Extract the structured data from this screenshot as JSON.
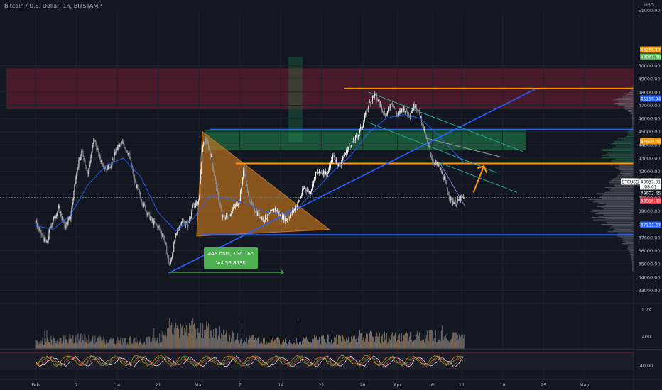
{
  "header": {
    "title": "Bitcoin / U.S. Dollar, 1h, BITSTAMP",
    "currency": "USD"
  },
  "chart_data": {
    "type": "candlestick",
    "symbol": "BTCUSD",
    "price_axis": {
      "ticks": [
        50000,
        49000,
        48000,
        47000,
        46000,
        45000,
        44000,
        43000,
        42000,
        41000,
        40000,
        39000,
        38000,
        37000,
        36000,
        35000,
        34000,
        33000
      ],
      "tick_labels": [
        "50000.00",
        "49000.00",
        "48000.00",
        "47000.00",
        "46000.00",
        "45000.00",
        "44000.00",
        "43000.00",
        "42000.00",
        "41000.00",
        "40000.00",
        "39000.00",
        "38000.00",
        "37000.00",
        "36000.00",
        "35000.00",
        "34000.00",
        "33000.00"
      ],
      "top_label": "51000.00",
      "range": [
        32500,
        51500
      ]
    },
    "time_axis": {
      "labels": [
        "Feb",
        "7",
        "14",
        "21",
        "Mar",
        "7",
        "14",
        "21",
        "28",
        "Apr",
        "6",
        "11",
        "18",
        "25",
        "May"
      ],
      "label_days": [
        0,
        7,
        14,
        21,
        28,
        35,
        42,
        49,
        56,
        62,
        68,
        73,
        80,
        87,
        94
      ],
      "data_end_day": 73.5
    },
    "price_series_anchors": [
      [
        0,
        38200
      ],
      [
        1,
        37200
      ],
      [
        2,
        36500
      ],
      [
        2.5,
        37800
      ],
      [
        3,
        38300
      ],
      [
        4,
        39200
      ],
      [
        5,
        37800
      ],
      [
        6,
        38500
      ],
      [
        7,
        42000
      ],
      [
        8,
        43500
      ],
      [
        9,
        41800
      ],
      [
        10,
        44500
      ],
      [
        11,
        43000
      ],
      [
        12,
        42200
      ],
      [
        13,
        42500
      ],
      [
        14,
        43800
      ],
      [
        15,
        44100
      ],
      [
        16,
        43300
      ],
      [
        17,
        41200
      ],
      [
        18,
        40000
      ],
      [
        19,
        39000
      ],
      [
        20,
        38200
      ],
      [
        21,
        37800
      ],
      [
        22,
        37000
      ],
      [
        23,
        34800
      ],
      [
        24,
        37100
      ],
      [
        25,
        38300
      ],
      [
        26,
        37900
      ],
      [
        27,
        39300
      ],
      [
        28,
        39800
      ],
      [
        28.6,
        43800
      ],
      [
        29.2,
        44500
      ],
      [
        30,
        43300
      ],
      [
        31,
        40800
      ],
      [
        32,
        38500
      ],
      [
        33,
        38600
      ],
      [
        34,
        39200
      ],
      [
        35,
        39900
      ],
      [
        35.7,
        42300
      ],
      [
        36.4,
        40200
      ],
      [
        37,
        39500
      ],
      [
        38,
        38800
      ],
      [
        39,
        38400
      ],
      [
        40,
        38700
      ],
      [
        41,
        39200
      ],
      [
        42,
        38600
      ],
      [
        43,
        38400
      ],
      [
        44,
        38900
      ],
      [
        45,
        39600
      ],
      [
        46,
        40800
      ],
      [
        47,
        40400
      ],
      [
        48,
        41800
      ],
      [
        49,
        42000
      ],
      [
        50,
        41800
      ],
      [
        51,
        43200
      ],
      [
        52,
        42400
      ],
      [
        53,
        43300
      ],
      [
        54,
        44100
      ],
      [
        55,
        44600
      ],
      [
        56,
        45500
      ],
      [
        57,
        47000
      ],
      [
        58,
        47800
      ],
      [
        59,
        47100
      ],
      [
        60,
        46200
      ],
      [
        61,
        47300
      ],
      [
        62,
        46200
      ],
      [
        63,
        46800
      ],
      [
        64,
        46300
      ],
      [
        65,
        47100
      ],
      [
        66,
        46000
      ],
      [
        67,
        44300
      ],
      [
        68,
        42800
      ],
      [
        69,
        42400
      ],
      [
        70,
        41400
      ],
      [
        71,
        39900
      ],
      [
        72,
        39600
      ],
      [
        73,
        40000
      ],
      [
        73.5,
        40031
      ]
    ],
    "moving_average_anchors": [
      [
        0,
        37900
      ],
      [
        3,
        37600
      ],
      [
        6,
        38700
      ],
      [
        9,
        41000
      ],
      [
        12,
        42400
      ],
      [
        15,
        43000
      ],
      [
        18,
        41600
      ],
      [
        21,
        38900
      ],
      [
        24,
        37500
      ],
      [
        27,
        38400
      ],
      [
        30,
        40200
      ],
      [
        33,
        39900
      ],
      [
        36,
        39600
      ],
      [
        39,
        39000
      ],
      [
        42,
        38800
      ],
      [
        45,
        39300
      ],
      [
        48,
        40600
      ],
      [
        51,
        42000
      ],
      [
        54,
        43200
      ],
      [
        57,
        44900
      ],
      [
        60,
        46000
      ],
      [
        63,
        46300
      ],
      [
        66,
        46000
      ],
      [
        69,
        44700
      ],
      [
        73.5,
        42600
      ]
    ],
    "volume_axis": {
      "labels": [
        "1.2K",
        "400"
      ]
    },
    "volume_anchors": [
      [
        0,
        110
      ],
      [
        7,
        160
      ],
      [
        14,
        120
      ],
      [
        21,
        140
      ],
      [
        23,
        340
      ],
      [
        28,
        300
      ],
      [
        35,
        150
      ],
      [
        42,
        130
      ],
      [
        49,
        140
      ],
      [
        56,
        190
      ],
      [
        62,
        160
      ],
      [
        68,
        210
      ],
      [
        73,
        170
      ]
    ],
    "oscillator_axis": {
      "label": "40.00"
    },
    "horizontal_levels": [
      {
        "price": 48266.17,
        "label": "48266.17",
        "color": "#ff9800"
      },
      {
        "price": 42600.34,
        "label": "42600.34",
        "color": "#ff9800"
      },
      {
        "price": 45156.04,
        "label": "45156.04",
        "color": "#2962ff"
      },
      {
        "price": 37191.67,
        "label": "37191.67",
        "color": "#2962ff"
      }
    ],
    "zones": [
      {
        "name": "resistance",
        "from_day": -5,
        "to_day": 130,
        "price_low": 46700,
        "price_high": 49800,
        "color": "#8b1e35"
      },
      {
        "name": "supply",
        "from_day": 29,
        "to_day": 84,
        "price_low": 43600,
        "price_high": 45156,
        "color": "#1f8b4c"
      }
    ],
    "triangle_pattern": {
      "points": [
        [
          28.6,
          45000
        ],
        [
          27.6,
          37100
        ],
        [
          50.3,
          37600
        ]
      ],
      "color": "#c8761e"
    },
    "trendlines": [
      {
        "from": [
          22.8,
          34300
        ],
        "to": [
          85.5,
          48200
        ],
        "color": "#2962ff"
      },
      {
        "from": [
          57,
          48000
        ],
        "to": [
          83.5,
          43500
        ],
        "color": "#26a69a"
      },
      {
        "from": [
          57,
          45700
        ],
        "to": [
          79,
          41900
        ],
        "color": "#26a69a"
      },
      {
        "from": [
          69,
          42700
        ],
        "to": [
          82.5,
          40400
        ],
        "color": "#26a69a"
      },
      {
        "from": [
          67,
          44500
        ],
        "to": [
          79.6,
          43100
        ],
        "color": "#9598a1"
      },
      {
        "from": [
          69.3,
          42600
        ],
        "to": [
          73.5,
          39400
        ],
        "color": "#7b7fe0"
      }
    ],
    "arrow": {
      "from": [
        75,
        40400
      ],
      "to": [
        76.8,
        42400
      ],
      "color": "#ff9800"
    },
    "measure": {
      "from_day": 23,
      "to_day": 42.5,
      "price": 34000,
      "label_line1": "448 bars, 18d 16h",
      "label_line2": "Vol 36.853K"
    },
    "right_labels": [
      {
        "label": "48266.17",
        "price": 48266.17,
        "color": "#ff9800"
      },
      {
        "label": "48061.38",
        "price": 48061.38,
        "color": "#4caf50"
      },
      {
        "label": "45156.04",
        "price": 45156.04,
        "color": "#2962ff"
      },
      {
        "label": "42600.34",
        "price": 42600.34,
        "color": "#ff9800"
      },
      {
        "label": "BTCUSD",
        "price": 40500,
        "color": "#ffffff"
      },
      {
        "label": "40031.01",
        "price": 40031.01,
        "color": "#ffffff"
      },
      {
        "label": "08:01",
        "price": 39500,
        "color": "#ffffff"
      },
      {
        "label": "39602.65",
        "price": 39000,
        "color": "#ffffff"
      },
      {
        "label": "38815.43",
        "price": 38500,
        "color": "#f23645"
      },
      {
        "label": "37191.67",
        "price": 37191.67,
        "color": "#2962ff"
      }
    ]
  }
}
